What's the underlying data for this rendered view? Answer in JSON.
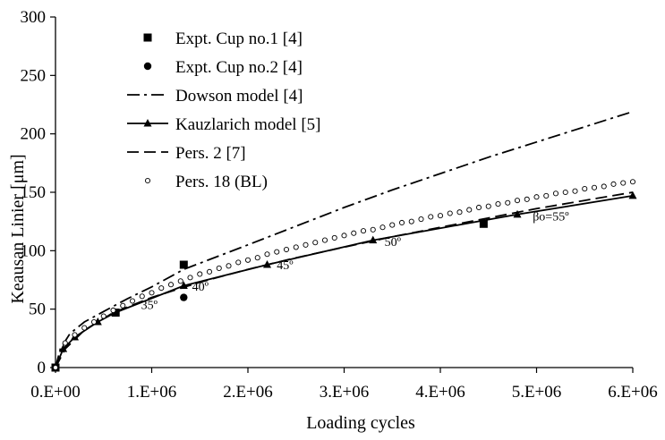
{
  "chart_data": {
    "type": "line",
    "title": "",
    "xlabel": "Loading cycles",
    "ylabel": "Keausan Linier [μm]",
    "xlim": [
      0,
      6000000
    ],
    "ylim": [
      0,
      300
    ],
    "x_ticks": [
      0,
      1000000,
      2000000,
      3000000,
      4000000,
      5000000,
      6000000
    ],
    "x_tick_labels": [
      "0.E+00",
      "1.E+06",
      "2.E+06",
      "3.E+06",
      "4.E+06",
      "5.E+06",
      "6.E+06"
    ],
    "y_ticks": [
      0,
      50,
      100,
      150,
      200,
      250,
      300
    ],
    "y_tick_labels": [
      "0",
      "50",
      "100",
      "150",
      "200",
      "250",
      "300"
    ],
    "grid": false,
    "legend_position": "top-left",
    "series": [
      {
        "name": "Expt. Cup no.1 [4]",
        "style": "square-markers",
        "points": [
          [
            0,
            0
          ],
          [
            625000,
            47
          ],
          [
            1333000,
            88
          ],
          [
            4450000,
            123
          ]
        ]
      },
      {
        "name": "Expt. Cup no.2 [4]",
        "style": "circle-markers",
        "points": [
          [
            1333000,
            60
          ]
        ]
      },
      {
        "name": "Dowson model [4]",
        "style": "dash-dot-line",
        "points": [
          [
            0,
            0
          ],
          [
            50000,
            16
          ],
          [
            150000,
            29
          ],
          [
            300000,
            39
          ],
          [
            500000,
            48
          ],
          [
            750000,
            59
          ],
          [
            1000000,
            69
          ],
          [
            1333000,
            84
          ],
          [
            2000000,
            105
          ],
          [
            2500000,
            121
          ],
          [
            3000000,
            137
          ],
          [
            3500000,
            152
          ],
          [
            4000000,
            166
          ],
          [
            4500000,
            180
          ],
          [
            5000000,
            193
          ],
          [
            5500000,
            206
          ],
          [
            6000000,
            219
          ]
        ]
      },
      {
        "name": "Kauzlarich model [5]",
        "style": "solid-line-triangles",
        "points": [
          [
            0,
            0
          ],
          [
            80000,
            16
          ],
          [
            200000,
            26
          ],
          [
            440000,
            39
          ],
          [
            620000,
            47
          ],
          [
            1333000,
            70
          ],
          [
            2200000,
            88
          ],
          [
            3300000,
            109
          ],
          [
            4800000,
            131
          ],
          [
            6000000,
            147
          ]
        ]
      },
      {
        "name": "Pers. 2 [7]",
        "style": "dashed-line",
        "points": [
          [
            0,
            0
          ],
          [
            100000,
            16
          ],
          [
            300000,
            32
          ],
          [
            600000,
            47
          ],
          [
            1000000,
            60
          ],
          [
            1500000,
            73
          ],
          [
            2000000,
            84
          ],
          [
            2500000,
            94
          ],
          [
            3000000,
            103
          ],
          [
            3500000,
            112
          ],
          [
            4000000,
            120
          ],
          [
            4500000,
            128
          ],
          [
            5000000,
            136
          ],
          [
            5500000,
            143
          ],
          [
            6000000,
            150
          ]
        ]
      },
      {
        "name": "Pers. 18 (BL)",
        "style": "open-circles",
        "points": [
          [
            0,
            0
          ],
          [
            100000,
            21
          ],
          [
            200000,
            28
          ],
          [
            300000,
            34
          ],
          [
            400000,
            39
          ],
          [
            500000,
            44
          ],
          [
            600000,
            49
          ],
          [
            700000,
            53
          ],
          [
            800000,
            57
          ],
          [
            900000,
            61
          ],
          [
            1000000,
            64
          ],
          [
            1100000,
            68
          ],
          [
            1200000,
            71
          ],
          [
            1300000,
            74
          ],
          [
            1400000,
            77
          ],
          [
            1500000,
            80
          ],
          [
            1600000,
            82
          ],
          [
            1700000,
            85
          ],
          [
            1800000,
            87
          ],
          [
            1900000,
            90
          ],
          [
            2000000,
            92
          ],
          [
            2100000,
            94
          ],
          [
            2200000,
            97
          ],
          [
            2300000,
            99
          ],
          [
            2400000,
            101
          ],
          [
            2500000,
            103
          ],
          [
            2600000,
            105
          ],
          [
            2700000,
            107
          ],
          [
            2800000,
            109
          ],
          [
            2900000,
            111
          ],
          [
            3000000,
            113
          ],
          [
            3100000,
            115
          ],
          [
            3200000,
            117
          ],
          [
            3300000,
            118
          ],
          [
            3400000,
            120
          ],
          [
            3500000,
            122
          ],
          [
            3600000,
            124
          ],
          [
            3700000,
            125
          ],
          [
            3800000,
            127
          ],
          [
            3900000,
            129
          ],
          [
            4000000,
            130
          ],
          [
            4100000,
            132
          ],
          [
            4200000,
            133
          ],
          [
            4300000,
            135
          ],
          [
            4400000,
            137
          ],
          [
            4500000,
            138
          ],
          [
            4600000,
            140
          ],
          [
            4700000,
            141
          ],
          [
            4800000,
            143
          ],
          [
            4900000,
            144
          ],
          [
            5000000,
            146
          ],
          [
            5100000,
            147
          ],
          [
            5200000,
            149
          ],
          [
            5300000,
            150
          ],
          [
            5400000,
            151
          ],
          [
            5500000,
            153
          ],
          [
            5600000,
            154
          ],
          [
            5700000,
            155
          ],
          [
            5800000,
            157
          ],
          [
            5900000,
            158
          ],
          [
            6000000,
            159
          ]
        ]
      }
    ],
    "annotations": [
      {
        "text": "35º",
        "x": 890000,
        "y": 50
      },
      {
        "text": "40º",
        "x": 1420000,
        "y": 66
      },
      {
        "text": "45º",
        "x": 2300000,
        "y": 84
      },
      {
        "text": "50º",
        "x": 3420000,
        "y": 104
      },
      {
        "text": "βo=55º",
        "x": 4960000,
        "y": 126
      }
    ]
  }
}
